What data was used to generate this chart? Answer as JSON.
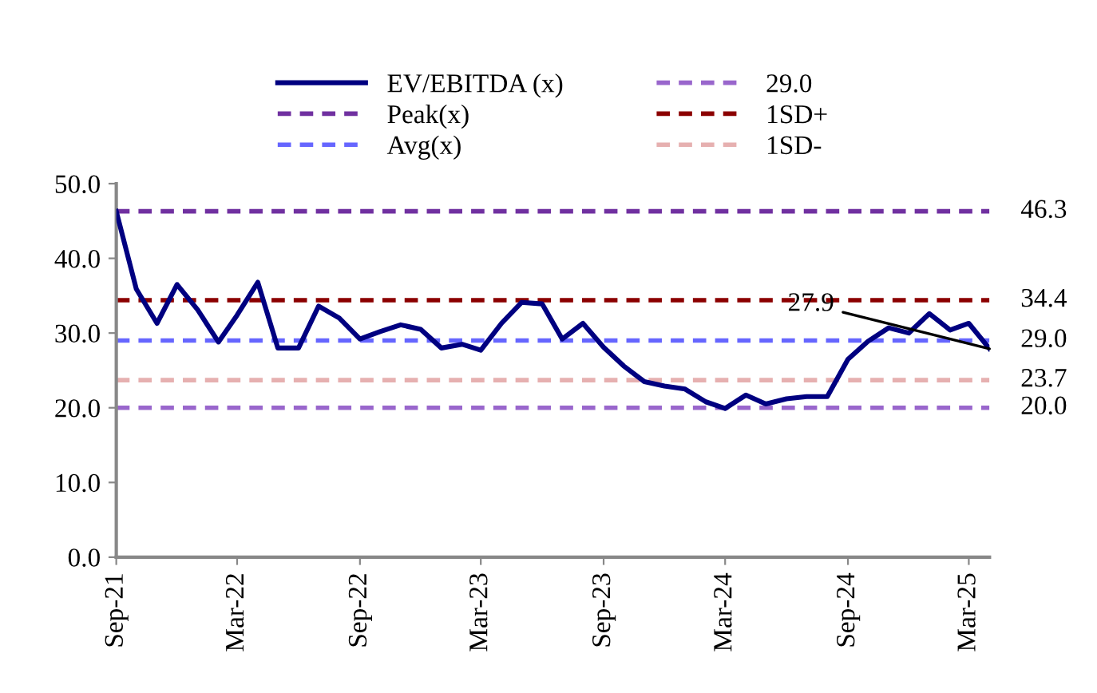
{
  "chart_data": {
    "type": "line",
    "x": [
      "2021-09",
      "2021-10",
      "2021-11",
      "2021-12",
      "2022-01",
      "2022-02",
      "2022-03",
      "2022-04",
      "2022-05",
      "2022-06",
      "2022-07",
      "2022-08",
      "2022-09",
      "2022-10",
      "2022-11",
      "2022-12",
      "2023-01",
      "2023-02",
      "2023-03",
      "2023-04",
      "2023-05",
      "2023-06",
      "2023-07",
      "2023-08",
      "2023-09",
      "2023-10",
      "2023-11",
      "2023-12",
      "2024-01",
      "2024-02",
      "2024-03",
      "2024-04",
      "2024-05",
      "2024-06",
      "2024-07",
      "2024-08",
      "2024-09",
      "2024-10",
      "2024-11",
      "2024-12",
      "2025-01",
      "2025-02",
      "2025-03",
      "2025-04"
    ],
    "series": [
      {
        "name": "EV/EBITDA (x)",
        "color": "#000080",
        "line_style": "solid",
        "values": [
          46.3,
          35.9,
          31.3,
          36.5,
          33.1,
          28.8,
          32.4,
          36.8,
          28.0,
          28.0,
          33.6,
          32.0,
          29.2,
          30.2,
          31.1,
          30.5,
          28.0,
          28.5,
          27.7,
          31.3,
          34.1,
          33.9,
          29.2,
          31.3,
          28.1,
          25.6,
          23.5,
          22.9,
          22.5,
          20.8,
          19.9,
          21.7,
          20.5,
          21.2,
          21.5,
          21.5,
          26.5,
          28.9,
          30.7,
          30.0,
          32.6,
          30.4,
          31.3,
          27.9
        ]
      },
      {
        "name": "Peak(x)",
        "color": "#7030a0",
        "line_style": "dashed",
        "values": [
          46.3,
          46.3,
          46.3,
          46.3,
          46.3,
          46.3,
          46.3,
          46.3,
          46.3,
          46.3,
          46.3,
          46.3,
          46.3,
          46.3,
          46.3,
          46.3,
          46.3,
          46.3,
          46.3,
          46.3,
          46.3,
          46.3,
          46.3,
          46.3,
          46.3,
          46.3,
          46.3,
          46.3,
          46.3,
          46.3,
          46.3,
          46.3,
          46.3,
          46.3,
          46.3,
          46.3,
          46.3,
          46.3,
          46.3,
          46.3,
          46.3,
          46.3,
          46.3,
          46.3
        ],
        "value_labels": [
          null,
          null,
          null,
          null,
          null,
          null,
          null,
          null,
          null,
          null,
          null,
          null,
          null,
          null,
          null,
          null,
          null,
          null,
          null,
          null,
          null,
          null,
          null,
          null,
          null,
          null,
          null,
          null,
          null,
          null,
          null,
          null,
          null,
          null,
          null,
          null,
          null,
          null,
          null,
          null,
          null,
          null,
          null,
          "46.3"
        ]
      },
      {
        "name": "Avg(x)",
        "color": "#6666ff",
        "line_style": "dashed",
        "values": [
          29.0,
          29.0,
          29.0,
          29.0,
          29.0,
          29.0,
          29.0,
          29.0,
          29.0,
          29.0,
          29.0,
          29.0,
          29.0,
          29.0,
          29.0,
          29.0,
          29.0,
          29.0,
          29.0,
          29.0,
          29.0,
          29.0,
          29.0,
          29.0,
          29.0,
          29.0,
          29.0,
          29.0,
          29.0,
          29.0,
          29.0,
          29.0,
          29.0,
          29.0,
          29.0,
          29.0,
          29.0,
          29.0,
          29.0,
          29.0,
          29.0,
          29.0,
          29.0,
          29.0
        ],
        "value_labels": [
          null,
          null,
          null,
          null,
          null,
          null,
          null,
          null,
          null,
          null,
          null,
          null,
          null,
          null,
          null,
          null,
          null,
          null,
          null,
          null,
          null,
          null,
          null,
          null,
          null,
          null,
          null,
          null,
          null,
          null,
          null,
          null,
          null,
          null,
          null,
          null,
          null,
          null,
          null,
          null,
          null,
          null,
          null,
          "29.0"
        ]
      },
      {
        "name": "29.0",
        "color": "#9966cc",
        "line_style": "dashed",
        "values": [
          20.0,
          20.0,
          20.0,
          20.0,
          20.0,
          20.0,
          20.0,
          20.0,
          20.0,
          20.0,
          20.0,
          20.0,
          20.0,
          20.0,
          20.0,
          20.0,
          20.0,
          20.0,
          20.0,
          20.0,
          20.0,
          20.0,
          20.0,
          20.0,
          20.0,
          20.0,
          20.0,
          20.0,
          20.0,
          20.0,
          20.0,
          20.0,
          20.0,
          20.0,
          20.0,
          20.0,
          20.0,
          20.0,
          20.0,
          20.0,
          20.0,
          20.0,
          20.0,
          20.0
        ],
        "value_labels": [
          null,
          null,
          null,
          null,
          null,
          null,
          null,
          null,
          null,
          null,
          null,
          null,
          null,
          null,
          null,
          null,
          null,
          null,
          null,
          null,
          null,
          null,
          null,
          null,
          null,
          null,
          null,
          null,
          null,
          null,
          null,
          null,
          null,
          null,
          null,
          null,
          null,
          null,
          null,
          null,
          null,
          null,
          null,
          "20.0"
        ]
      },
      {
        "name": "1SD+",
        "color": "#8b0000",
        "line_style": "dashed",
        "values": [
          34.4,
          34.4,
          34.4,
          34.4,
          34.4,
          34.4,
          34.4,
          34.4,
          34.4,
          34.4,
          34.4,
          34.4,
          34.4,
          34.4,
          34.4,
          34.4,
          34.4,
          34.4,
          34.4,
          34.4,
          34.4,
          34.4,
          34.4,
          34.4,
          34.4,
          34.4,
          34.4,
          34.4,
          34.4,
          34.4,
          34.4,
          34.4,
          34.4,
          34.4,
          34.4,
          34.4,
          34.4,
          34.4,
          34.4,
          34.4,
          34.4,
          34.4,
          34.4,
          34.4
        ],
        "value_labels": [
          null,
          null,
          null,
          null,
          null,
          null,
          null,
          null,
          null,
          null,
          null,
          null,
          null,
          null,
          null,
          null,
          null,
          null,
          null,
          null,
          null,
          null,
          null,
          null,
          null,
          null,
          null,
          null,
          null,
          null,
          null,
          null,
          null,
          null,
          null,
          null,
          null,
          null,
          null,
          null,
          null,
          null,
          null,
          "34.4"
        ]
      },
      {
        "name": "1SD-",
        "color": "#e6b0b0",
        "line_style": "dashed",
        "values": [
          23.7,
          23.7,
          23.7,
          23.7,
          23.7,
          23.7,
          23.7,
          23.7,
          23.7,
          23.7,
          23.7,
          23.7,
          23.7,
          23.7,
          23.7,
          23.7,
          23.7,
          23.7,
          23.7,
          23.7,
          23.7,
          23.7,
          23.7,
          23.7,
          23.7,
          23.7,
          23.7,
          23.7,
          23.7,
          23.7,
          23.7,
          23.7,
          23.7,
          23.7,
          23.7,
          23.7,
          23.7,
          23.7,
          23.7,
          23.7,
          23.7,
          23.7,
          23.7,
          23.7
        ],
        "value_labels": [
          null,
          null,
          null,
          null,
          null,
          null,
          null,
          null,
          null,
          null,
          null,
          null,
          null,
          null,
          null,
          null,
          null,
          null,
          null,
          null,
          null,
          null,
          null,
          null,
          null,
          null,
          null,
          null,
          null,
          null,
          null,
          null,
          null,
          null,
          null,
          null,
          null,
          null,
          null,
          null,
          null,
          null,
          null,
          "23.7"
        ]
      }
    ],
    "annotations": [
      {
        "text": "27.9",
        "x": "2025-04",
        "y": 27.9
      }
    ],
    "xlim": [
      "2021-09",
      "2025-04"
    ],
    "xticks": [
      {
        "value": "2021-09",
        "label": "Sep-21"
      },
      {
        "value": "2022-03",
        "label": "Mar-22"
      },
      {
        "value": "2022-09",
        "label": "Sep-22"
      },
      {
        "value": "2023-03",
        "label": "Mar-23"
      },
      {
        "value": "2023-09",
        "label": "Sep-23"
      },
      {
        "value": "2024-03",
        "label": "Mar-24"
      },
      {
        "value": "2024-09",
        "label": "Sep-24"
      },
      {
        "value": "2025-03",
        "label": "Mar-25"
      }
    ],
    "ylim": [
      0,
      50
    ],
    "yticks": [
      {
        "value": 0,
        "label": "0.0"
      },
      {
        "value": 10,
        "label": "10.0"
      },
      {
        "value": 20,
        "label": "20.0"
      },
      {
        "value": 30,
        "label": "30.0"
      },
      {
        "value": 40,
        "label": "40.0"
      },
      {
        "value": 50,
        "label": "50.0"
      }
    ],
    "grid": false,
    "legend": "top",
    "marker": "none"
  }
}
